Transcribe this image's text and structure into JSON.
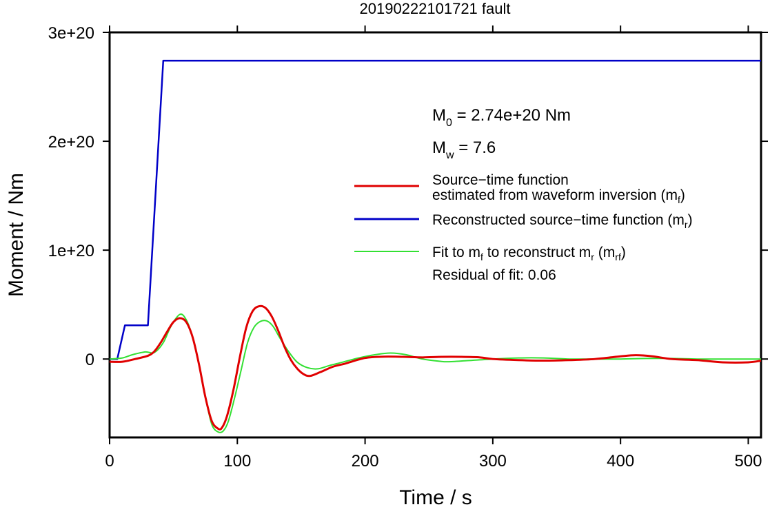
{
  "chart_data": {
    "type": "line",
    "title": "20190222101721 fault",
    "xlabel": "Time / s",
    "ylabel": "Moment / Nm",
    "xlim": [
      0,
      510
    ],
    "ylim": [
      -72000000000000000000,
      300000000000000000000
    ],
    "x_ticks": [
      0,
      100,
      200,
      300,
      400,
      500
    ],
    "x_tick_labels": [
      "0",
      "100",
      "200",
      "300",
      "400",
      "500"
    ],
    "y_ticks": [
      0,
      100000000000000000000,
      200000000000000000000,
      300000000000000000000
    ],
    "y_tick_labels": [
      "0",
      "1e+20",
      "2e+20",
      "3e+20"
    ],
    "grid": false,
    "legend_position": "right",
    "annotations": {
      "m0_prefix": "M",
      "m0_sub": "0",
      "m0_value": " = 2.74e+20 Nm",
      "mw_prefix": "M",
      "mw_sub": "w",
      "mw_value": " = 7.6",
      "residual": "Residual of fit: 0.06"
    },
    "series": [
      {
        "name": "Source−time function estimated from waveform inversion (mf)",
        "legend_line1": "Source−time function",
        "legend_line2_pre": "estimated from waveform inversion (m",
        "legend_line2_sub": "f",
        "legend_line2_post": ")",
        "color": "#e00000",
        "x": [
          0,
          10,
          20,
          30,
          35,
          40,
          45,
          50,
          55,
          60,
          65,
          70,
          75,
          80,
          85,
          88,
          92,
          97,
          102,
          107,
          112,
          117,
          122,
          127,
          132,
          137,
          142,
          147,
          152,
          157,
          165,
          175,
          185,
          200,
          215,
          230,
          245,
          260,
          275,
          290,
          300,
          320,
          340,
          360,
          380,
          400,
          412,
          425,
          440,
          460,
          480,
          500,
          510
        ],
        "y": [
          -2.5e+18,
          -2.5e+18,
          0,
          3e+18,
          7e+18,
          1.5e+19,
          2.5e+19,
          3.4e+19,
          3.75e+19,
          3.4e+19,
          2e+19,
          -5e+18,
          -3.5e+19,
          -5.7e+19,
          -6.4e+19,
          -6.3e+19,
          -5.2e+19,
          -2.8e+19,
          2e+18,
          2.9e+19,
          4.4e+19,
          4.85e+19,
          4.7e+19,
          3.9e+19,
          2.6e+19,
          1.1e+19,
          -1e+18,
          -9e+18,
          -1.4e+19,
          -1.55e+19,
          -1.2e+19,
          -7e+18,
          -4e+18,
          1e+18,
          2.2e+18,
          2e+18,
          1.5e+18,
          2e+18,
          2e+18,
          1.5e+18,
          0,
          -1e+18,
          -1.5e+18,
          -1e+18,
          0,
          2.5e+18,
          3.5e+18,
          2.5e+18,
          0,
          -1e+18,
          -3e+18,
          -3e+18,
          -1.5e+18
        ]
      },
      {
        "name": "Reconstructed source−time function (mr)",
        "legend_pre": "Reconstructed source−time function (m",
        "legend_sub": "r",
        "legend_post": ")",
        "color": "#0000c8",
        "x": [
          0,
          6,
          12,
          30,
          42,
          510
        ],
        "y": [
          0,
          0,
          3.1e+19,
          3.1e+19,
          2.74e+20,
          2.74e+20
        ]
      },
      {
        "name": "Fit to mf to reconstruct mr (mrf)",
        "legend_pre": "Fit to m",
        "legend_sub1": "f",
        "legend_mid": " to reconstruct m",
        "legend_sub2": "r",
        "legend_mid2": " (m",
        "legend_sub3": "rf",
        "legend_post": ")",
        "color": "#33e033",
        "x": [
          0,
          10,
          18,
          28,
          35,
          42,
          48,
          55,
          60,
          65,
          70,
          75,
          80,
          85,
          89,
          93,
          98,
          103,
          108,
          113,
          118,
          123,
          128,
          133,
          140,
          147,
          155,
          163,
          172,
          182,
          195,
          208,
          220,
          232,
          245,
          258,
          265,
          280,
          300,
          320,
          340,
          360,
          380,
          400,
          420,
          440,
          460,
          480,
          500,
          510
        ],
        "y": [
          0,
          1e+18,
          4e+18,
          6.5e+18,
          6e+18,
          1.5e+19,
          3e+19,
          4.1e+19,
          3.6e+19,
          2e+19,
          -5e+18,
          -3.5e+19,
          -6e+19,
          -6.7e+19,
          -6.6e+19,
          -5.7e+19,
          -3.5e+19,
          -1e+19,
          1.5e+19,
          2.9e+19,
          3.45e+19,
          3.5e+19,
          3e+19,
          2e+19,
          7e+18,
          -3e+18,
          -8e+18,
          -9e+18,
          -6e+18,
          -3e+18,
          1e+18,
          4e+18,
          5.5e+18,
          4e+18,
          0,
          -2e+18,
          -2.5e+18,
          -1.5e+18,
          0,
          1e+18,
          1e+18,
          0,
          0,
          0,
          5e+17,
          5e+17,
          0,
          0,
          0,
          0
        ]
      }
    ]
  }
}
